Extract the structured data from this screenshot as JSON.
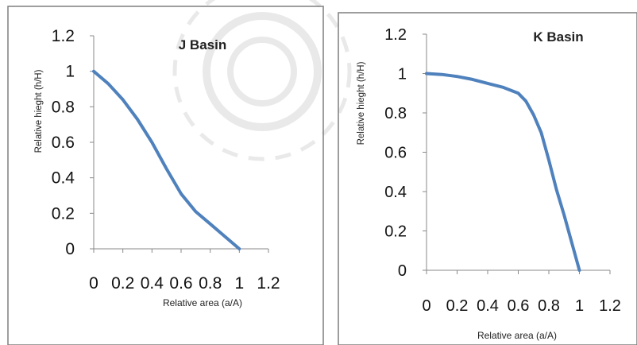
{
  "chart_data": [
    {
      "type": "line",
      "title": "J  Basin",
      "xlabel": "Relative area (a/A)",
      "ylabel": "Relative hieght (h/H)",
      "xlim": [
        0,
        1.2
      ],
      "ylim": [
        0,
        1.2
      ],
      "x_ticks": [
        "0",
        "0.2",
        "0.4",
        "0.6",
        "0.8",
        "1",
        "1.2"
      ],
      "y_ticks": [
        "0",
        "0.2",
        "0.4",
        "0.6",
        "0.8",
        "1",
        "1.2"
      ],
      "legend": "none",
      "grid": false,
      "series": [
        {
          "color": "#4f81bd",
          "x": [
            0,
            0.1,
            0.2,
            0.3,
            0.4,
            0.5,
            0.6,
            0.7,
            0.8,
            0.9,
            1.0
          ],
          "y": [
            1.0,
            0.93,
            0.84,
            0.73,
            0.6,
            0.45,
            0.31,
            0.21,
            0.14,
            0.07,
            0.0
          ]
        }
      ]
    },
    {
      "type": "line",
      "title": "K Basin",
      "xlabel": "Relative area (a/A)",
      "ylabel": "Relative hieght (h/H)",
      "xlim": [
        0,
        1.2
      ],
      "ylim": [
        0,
        1.2
      ],
      "x_ticks": [
        "0",
        "0.2",
        "0.4",
        "0.6",
        "0.8",
        "1",
        "1.2"
      ],
      "y_ticks": [
        "0",
        "0.2",
        "0.4",
        "0.6",
        "0.8",
        "1",
        "1.2"
      ],
      "legend": "none",
      "grid": false,
      "series": [
        {
          "color": "#4f81bd",
          "x": [
            0,
            0.1,
            0.2,
            0.3,
            0.4,
            0.5,
            0.6,
            0.65,
            0.7,
            0.75,
            0.8,
            0.85,
            0.9,
            0.95,
            1.0
          ],
          "y": [
            1.0,
            0.995,
            0.985,
            0.97,
            0.95,
            0.93,
            0.9,
            0.86,
            0.79,
            0.7,
            0.56,
            0.41,
            0.28,
            0.14,
            0.0
          ]
        }
      ]
    }
  ]
}
